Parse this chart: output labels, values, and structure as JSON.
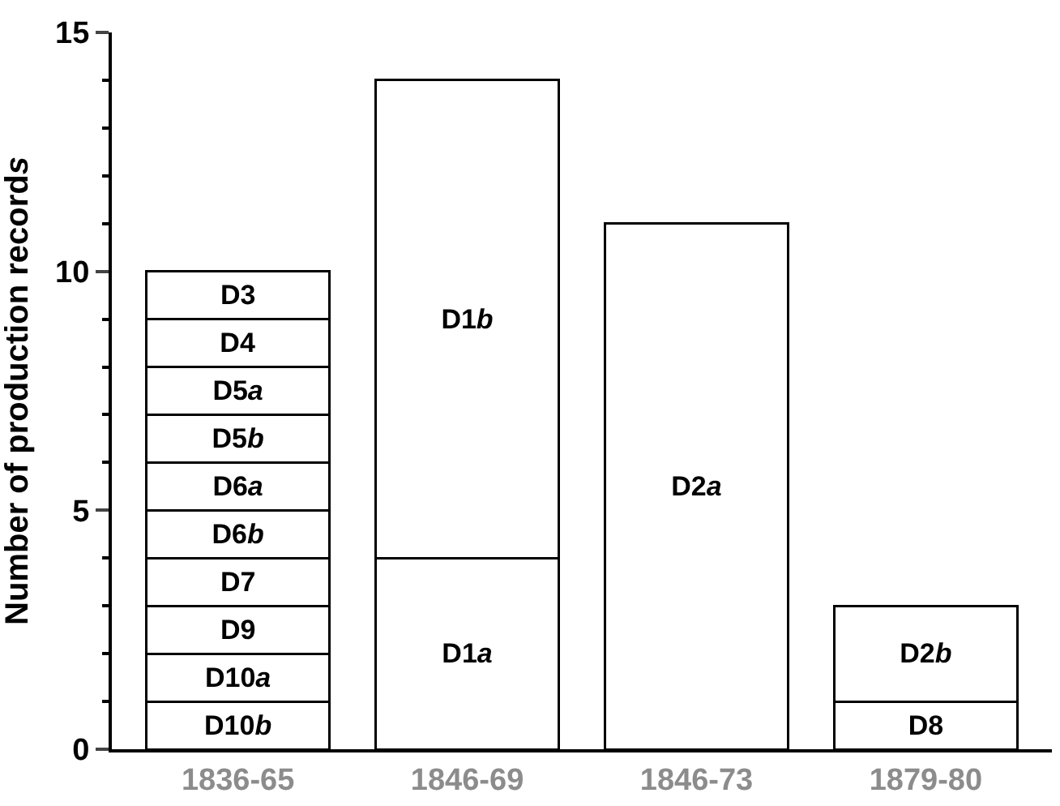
{
  "chart_data": {
    "type": "bar",
    "stacked": true,
    "ylabel": "Number of production records",
    "categories": [
      "1836-65",
      "1846-69",
      "1846-73",
      "1879-80"
    ],
    "series": [
      {
        "color": "#ffffff",
        "values": [
          1,
          4,
          11,
          1
        ],
        "value_labels": [
          "D10b",
          "D1a",
          "D2a",
          "D8"
        ]
      },
      {
        "color": "#ffffff",
        "values": [
          1,
          10,
          null,
          2
        ],
        "value_labels": [
          "D10a",
          "D1b",
          null,
          "D2b"
        ]
      },
      {
        "color": "#ffffff",
        "values": [
          1,
          null,
          null,
          null
        ],
        "value_labels": [
          "D9",
          null,
          null,
          null
        ]
      },
      {
        "color": "#ffffff",
        "values": [
          1,
          null,
          null,
          null
        ],
        "value_labels": [
          "D7",
          null,
          null,
          null
        ]
      },
      {
        "color": "#ffffff",
        "values": [
          1,
          null,
          null,
          null
        ],
        "value_labels": [
          "D6b",
          null,
          null,
          null
        ]
      },
      {
        "color": "#ffffff",
        "values": [
          1,
          null,
          null,
          null
        ],
        "value_labels": [
          "D6a",
          null,
          null,
          null
        ]
      },
      {
        "color": "#ffffff",
        "values": [
          1,
          null,
          null,
          null
        ],
        "value_labels": [
          "D5b",
          null,
          null,
          null
        ]
      },
      {
        "color": "#ffffff",
        "values": [
          1,
          null,
          null,
          null
        ],
        "value_labels": [
          "D5a",
          null,
          null,
          null
        ]
      },
      {
        "color": "#ffffff",
        "values": [
          1,
          null,
          null,
          null
        ],
        "value_labels": [
          "D4",
          null,
          null,
          null
        ]
      },
      {
        "color": "#ffffff",
        "values": [
          1,
          null,
          null,
          null
        ],
        "value_labels": [
          "D3",
          null,
          null,
          null
        ]
      }
    ],
    "ylim": [
      0,
      15
    ],
    "yticks": [
      0,
      {
        "value": 1,
        "label": null
      },
      {
        "value": 2,
        "label": null
      },
      {
        "value": 3,
        "label": null
      },
      {
        "value": 4,
        "label": null
      },
      5,
      {
        "value": 6,
        "label": null
      },
      {
        "value": 7,
        "label": null
      },
      {
        "value": 8,
        "label": null
      },
      {
        "value": 9,
        "label": null
      },
      10,
      {
        "value": 11,
        "label": null
      },
      {
        "value": 12,
        "label": null
      },
      {
        "value": 13,
        "label": null
      },
      {
        "value": 14,
        "label": null
      },
      15
    ],
    "tick_labels": true
  }
}
